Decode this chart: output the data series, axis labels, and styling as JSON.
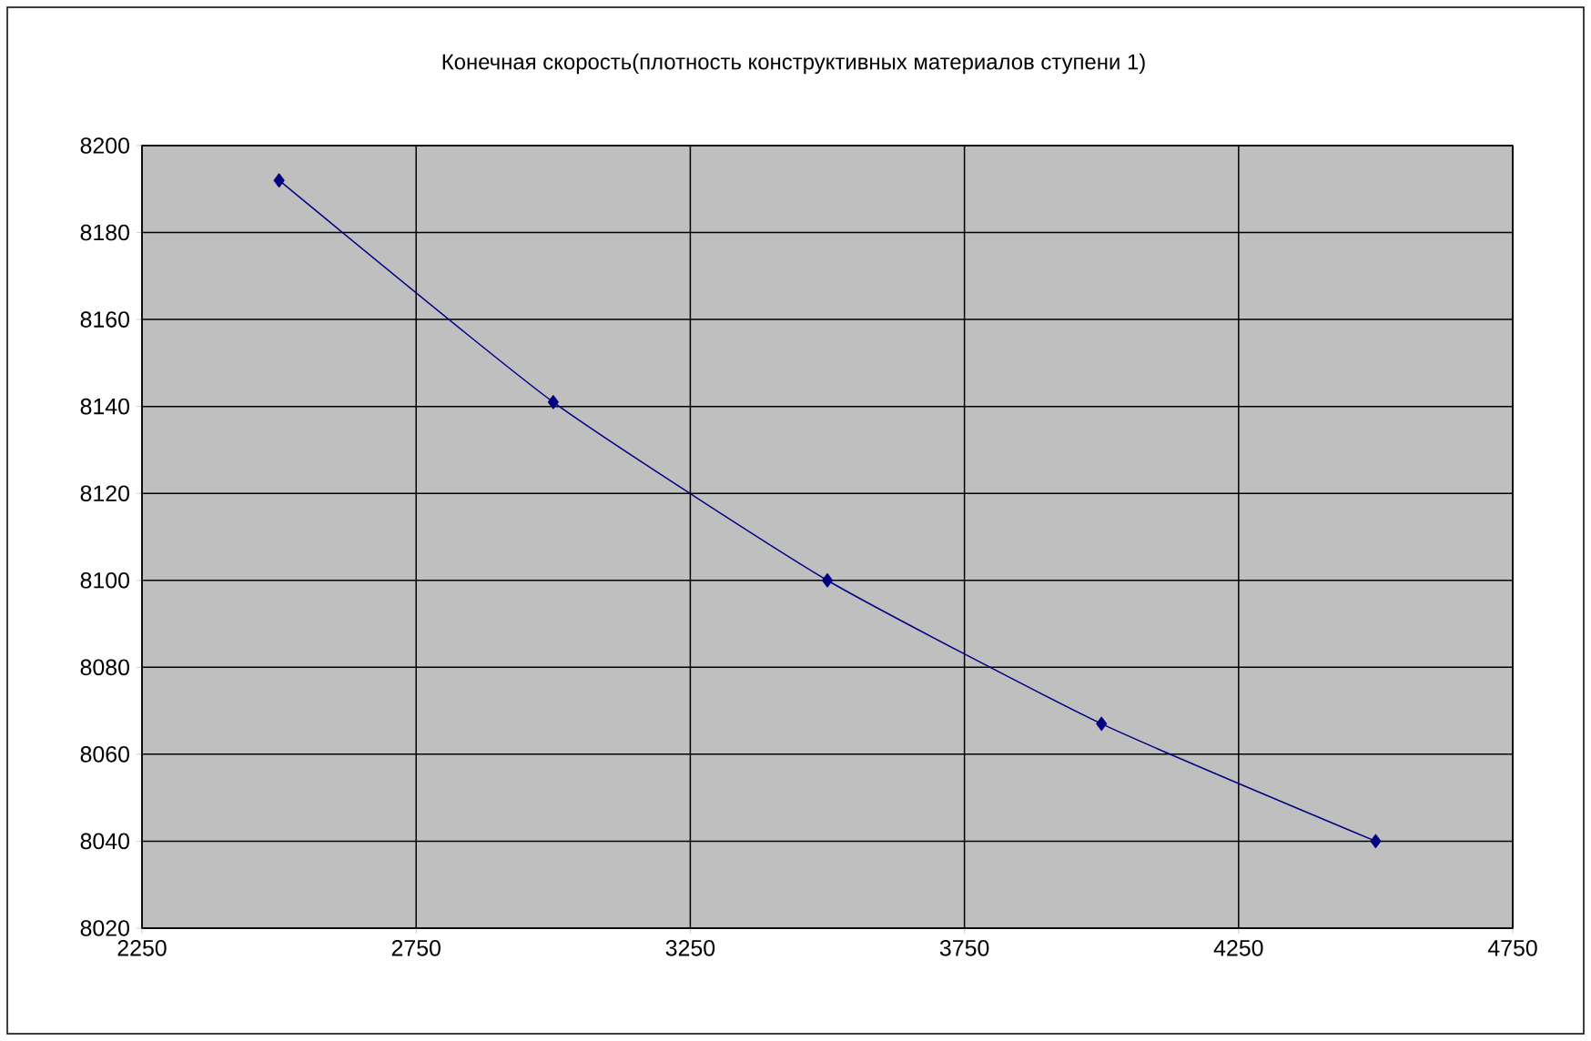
{
  "chart_data": {
    "type": "line",
    "title": "Конечная скорость(плотность конструктивных материалов ступени 1)",
    "x": [
      2500,
      3000,
      3500,
      4000,
      4500
    ],
    "series": [
      {
        "color": "#000080",
        "values": [
          8192,
          8141,
          8100,
          8067,
          8040
        ]
      }
    ],
    "xlim": [
      2250,
      4750
    ],
    "xticks": [
      2250,
      2750,
      3250,
      3750,
      4250,
      4750
    ],
    "ylim": [
      8020,
      8200
    ],
    "yticks": [
      8020,
      8040,
      8060,
      8080,
      8100,
      8120,
      8140,
      8160,
      8180,
      8200
    ],
    "grid": true,
    "marker": "diamond",
    "line_style": "solid"
  }
}
